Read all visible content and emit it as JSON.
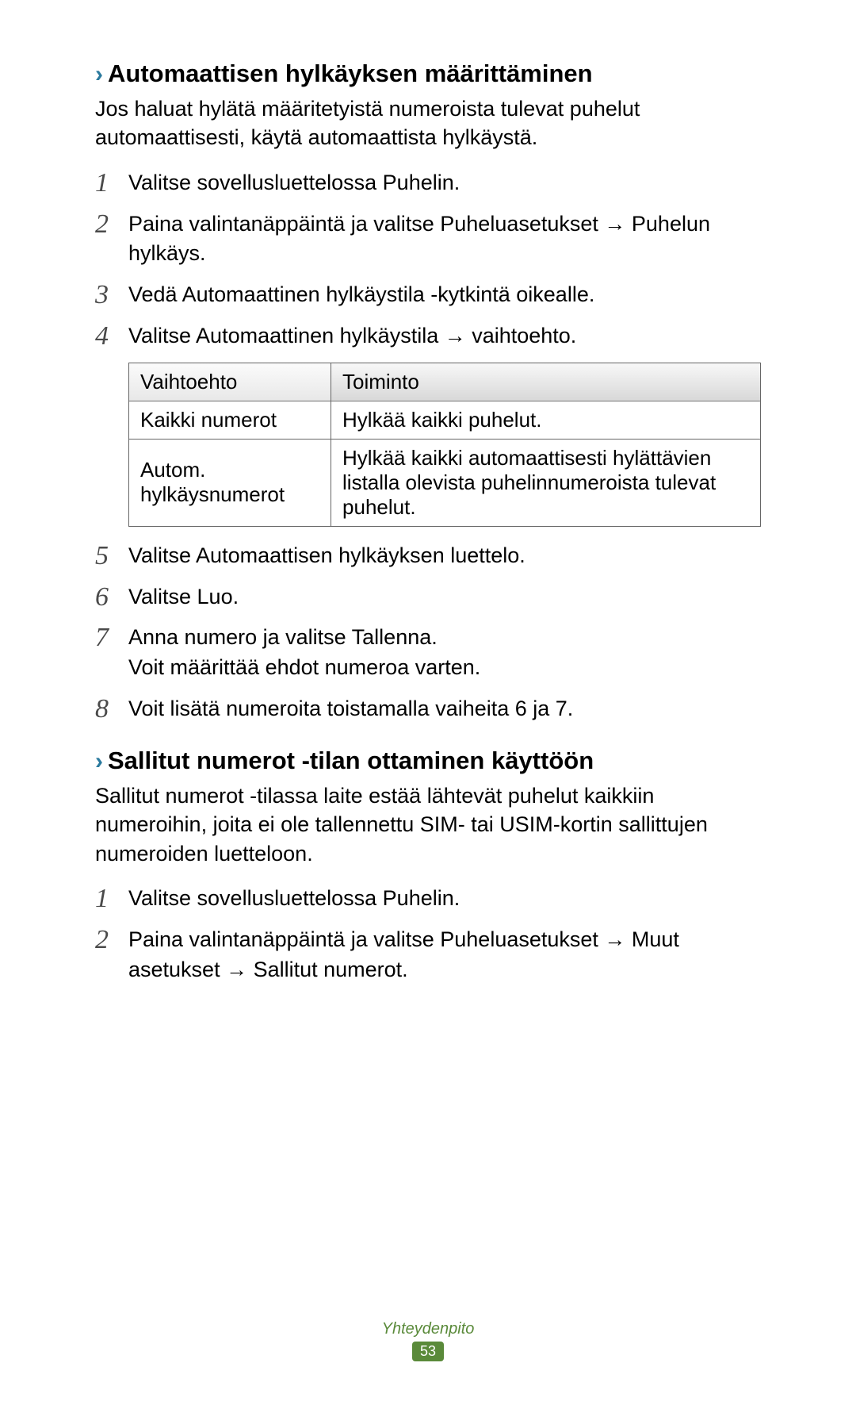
{
  "section1": {
    "chevron": "›",
    "title": "Automaattisen hylkäyksen määrittäminen",
    "intro": "Jos haluat hylätä määritetyistä numeroista tulevat puhelut automaattisesti, käytä automaattista hylkäystä.",
    "steps": {
      "s1": "Valitse sovellusluettelossa Puhelin.",
      "s2": "Paina valintanäppäintä ja valitse Puheluasetukset → Puhelun hylkäys.",
      "s3": "Vedä Automaattinen hylkäystila -kytkintä oikealle.",
      "s4": "Valitse Automaattinen hylkäystila → vaihtoehto.",
      "s5": "Valitse Automaattisen hylkäyksen luettelo.",
      "s6": "Valitse Luo.",
      "s7a": "Anna numero ja valitse Tallenna.",
      "s7b": "Voit määrittää ehdot numeroa varten.",
      "s8": "Voit lisätä numeroita toistamalla vaiheita 6 ja 7."
    },
    "table": {
      "h1": "Vaihtoehto",
      "h2": "Toiminto",
      "r1c1": "Kaikki numerot",
      "r1c2": "Hylkää kaikki puhelut.",
      "r2c1": "Autom. hylkäysnumerot",
      "r2c2": "Hylkää kaikki automaattisesti hylättävien listalla olevista puhelinnumeroista tulevat puhelut."
    }
  },
  "section2": {
    "chevron": "›",
    "title": "Sallitut numerot -tilan ottaminen käyttöön",
    "intro": "Sallitut numerot -tilassa laite estää lähtevät puhelut kaikkiin numeroihin, joita ei ole tallennettu SIM- tai USIM-kortin sallittujen numeroiden luetteloon.",
    "steps": {
      "s1": "Valitse sovellusluettelossa Puhelin.",
      "s2": "Paina valintanäppäintä ja valitse Puheluasetukset → Muut asetukset → Sallitut numerot."
    }
  },
  "footer": {
    "label": "Yhteydenpito",
    "page": "53"
  },
  "nums": {
    "n1": "1",
    "n2": "2",
    "n3": "3",
    "n4": "4",
    "n5": "5",
    "n6": "6",
    "n7": "7",
    "n8": "8"
  }
}
